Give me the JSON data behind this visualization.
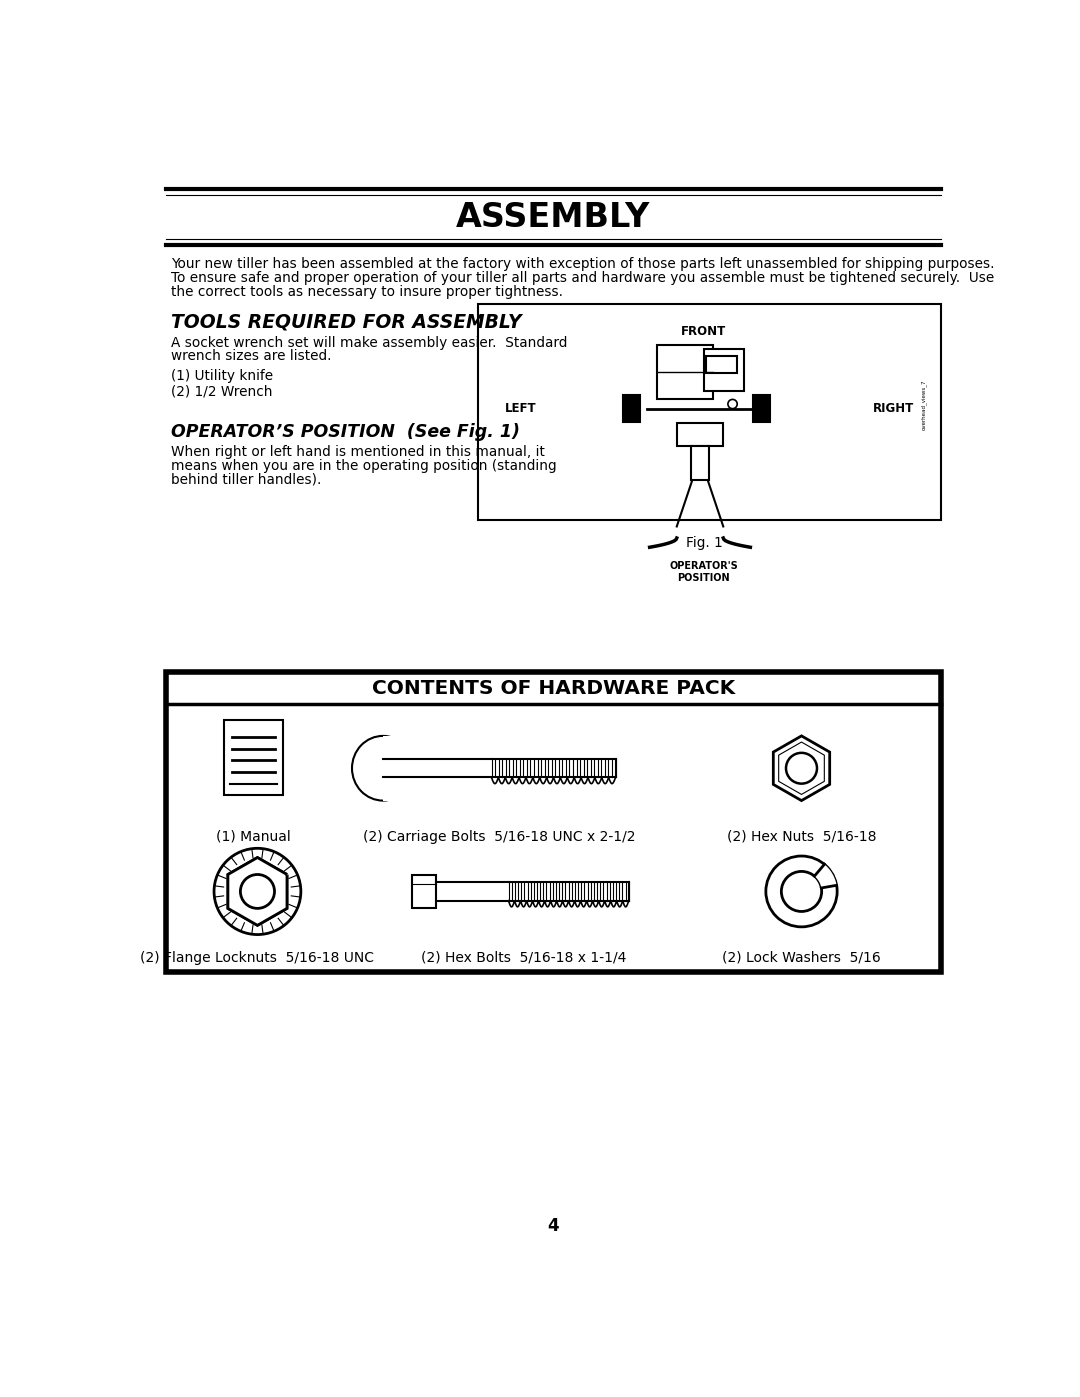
{
  "title": "ASSEMBLY",
  "bg_color": "#ffffff",
  "intro_text_line1": "Your new tiller has been assembled at the factory with exception of those parts left unassembled for shipping purposes.",
  "intro_text_line2": "To ensure safe and proper operation of your tiller all parts and hardware you assemble must be tightened securely.  Use",
  "intro_text_line3": "the correct tools as necessary to insure proper tightness.",
  "tools_heading": "TOOLS REQUIRED FOR ASSEMBLY",
  "tools_sub1": "A socket wrench set will make assembly easier.  Standard",
  "tools_sub2": "wrench sizes are listed.",
  "tool1": "(1) Utility knife",
  "tool2": "(2) 1/2 Wrench",
  "ops_heading": "OPERATOR’S POSITION  (See Fig. 1)",
  "ops_line1": "When right or left hand is mentioned in this manual, it",
  "ops_line2": "means when you are in the operating position (standing",
  "ops_line3": "behind tiller handles).",
  "fig_caption": "Fig. 1",
  "hardware_title": "CONTENTS OF HARDWARE PACK",
  "lbl_manual": "(1) Manual",
  "lbl_carriage": "(2) Carriage Bolts  5/16-18 UNC x 2-1/2",
  "lbl_hexnuts": "(2) Hex Nuts  5/16-18",
  "lbl_flange": "(2) Flange Locknuts  5/16-18 UNC",
  "lbl_hexbolts": "(2) Hex Bolts  5/16-18 x 1-1/4",
  "lbl_lockwash": "(2) Lock Washers  5/16",
  "page_number": "4"
}
